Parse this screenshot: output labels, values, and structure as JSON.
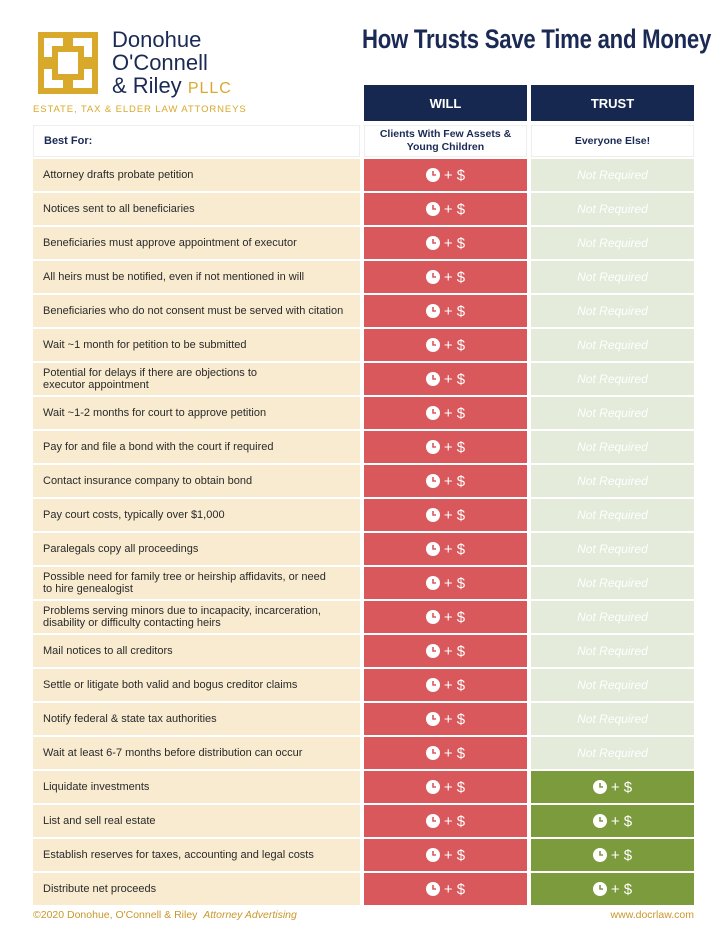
{
  "logo": {
    "line1": "Donohue",
    "line2": "O'Connell",
    "line3": "& Riley",
    "suffix": "PLLC",
    "tagline": "ESTATE, TAX & ELDER LAW ATTORNEYS"
  },
  "title": "How Trusts Save Time and Money",
  "table": {
    "columns": {
      "will": "WILL",
      "trust": "TRUST"
    },
    "best_for": {
      "label": "Best For:",
      "will": "Clients With Few Assets & Young Children",
      "trust": "Everyone Else!"
    },
    "rows": [
      {
        "label": "Attorney drafts probate petition",
        "will": "+ $",
        "trust": "Not Required"
      },
      {
        "label": "Notices sent to all beneficiaries",
        "will": "+ $",
        "trust": "Not Required"
      },
      {
        "label": "Beneficiaries must approve appointment of executor",
        "will": "+ $",
        "trust": "Not Required"
      },
      {
        "label": "All heirs must be notified, even if not mentioned in will",
        "will": "+ $",
        "trust": "Not Required"
      },
      {
        "label": "Beneficiaries who do not consent must be served with citation",
        "will": "+ $",
        "trust": "Not Required"
      },
      {
        "label": "Wait ~1 month for petition to be submitted",
        "will": "+ $",
        "trust": "Not Required"
      },
      {
        "label": [
          "Potential for delays if there are objections to",
          "executor appointment"
        ],
        "will": "+ $",
        "trust": "Not Required"
      },
      {
        "label": "Wait ~1-2 months for court to approve petition",
        "will": "+ $",
        "trust": "Not Required"
      },
      {
        "label": "Pay for and file a bond with the court if required",
        "will": "+ $",
        "trust": "Not Required"
      },
      {
        "label": "Contact insurance company to obtain bond",
        "will": "+ $",
        "trust": "Not Required"
      },
      {
        "label": "Pay court costs, typically over $1,000",
        "will": "+ $",
        "trust": "Not Required"
      },
      {
        "label": "Paralegals copy all proceedings",
        "will": "+ $",
        "trust": "Not Required"
      },
      {
        "label": [
          "Possible need for family tree or heirship affidavits, or need",
          "to hire genealogist"
        ],
        "will": "+ $",
        "trust": "Not Required"
      },
      {
        "label": [
          "Problems serving minors due to incapacity, incarceration,",
          "disability or difficulty contacting heirs"
        ],
        "will": "+ $",
        "trust": "Not Required"
      },
      {
        "label": "Mail notices to all creditors",
        "will": "+ $",
        "trust": "Not Required"
      },
      {
        "label": "Settle or litigate both valid and bogus creditor claims",
        "will": "+ $",
        "trust": "Not Required"
      },
      {
        "label": "Notify federal & state tax authorities",
        "will": "+ $",
        "trust": "Not Required"
      },
      {
        "label": "Wait at least 6-7 months before distribution can occur",
        "will": "+ $",
        "trust": "Not Required"
      },
      {
        "label": "Liquidate investments",
        "will": "+ $",
        "trust": "+ $"
      },
      {
        "label": "List and sell real estate",
        "will": "+ $",
        "trust": "+ $"
      },
      {
        "label": "Establish reserves for taxes, accounting and legal costs",
        "will": "+ $",
        "trust": "+ $"
      },
      {
        "label": "Distribute net proceeds",
        "will": "+ $",
        "trust": "+ $"
      }
    ]
  },
  "footer": {
    "copyright": "©2020 Donohue, O'Connell & Riley",
    "note": "Attorney Advertising",
    "url": "www.docrlaw.com"
  }
}
